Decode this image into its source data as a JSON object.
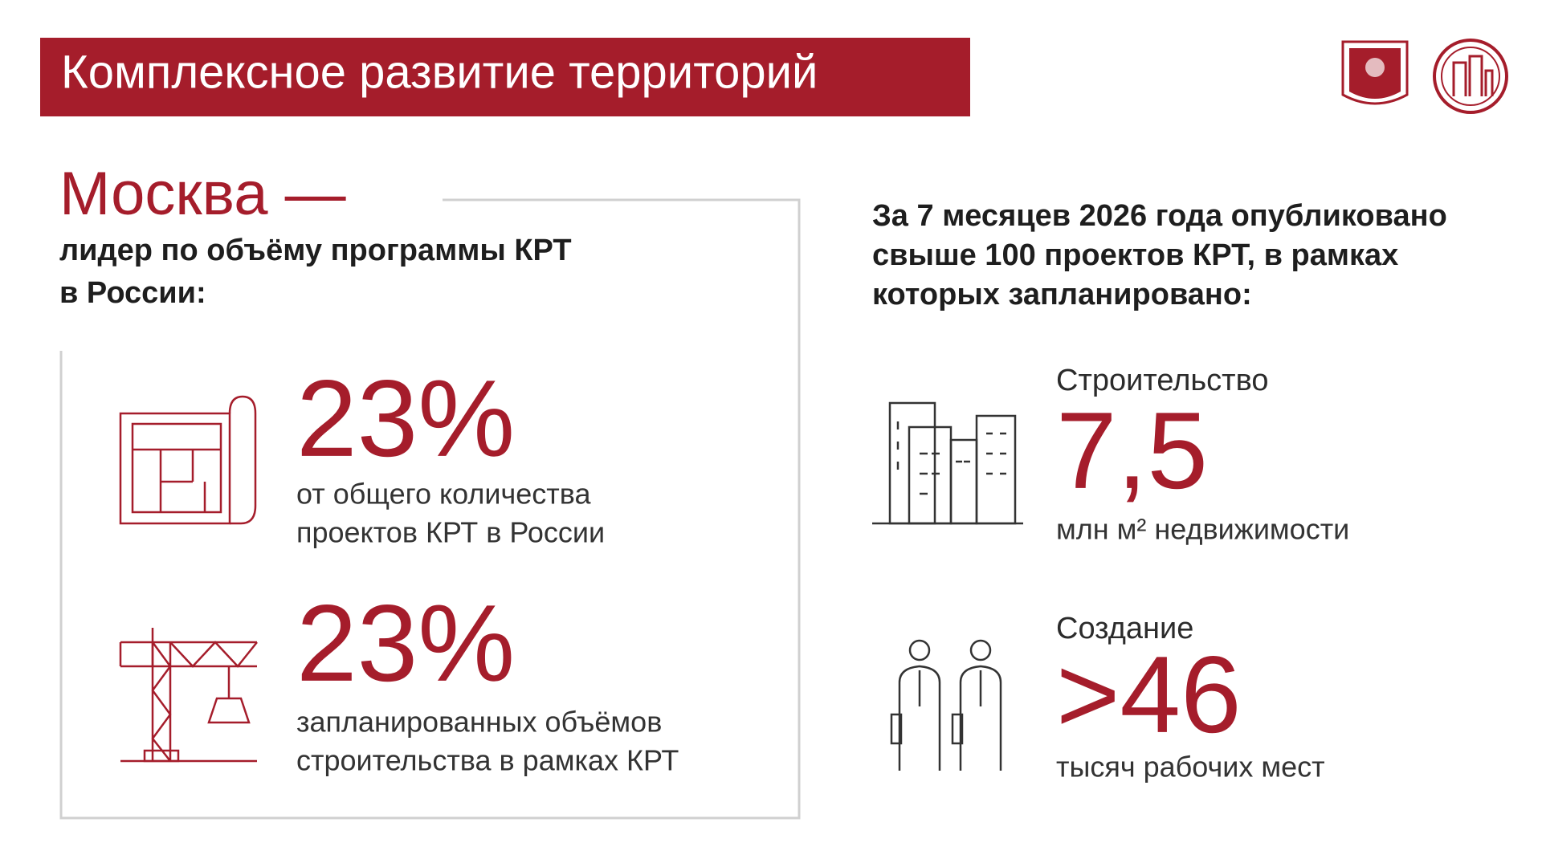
{
  "header": {
    "title": "Комплексное развитие территорий"
  },
  "left": {
    "title": "Москва —",
    "subtitle": [
      "лидер по объёму программы КРТ",
      "в России:"
    ],
    "stats": [
      {
        "value": "23%",
        "description": [
          "от общего количества",
          "проектов КРТ в России"
        ]
      },
      {
        "value": "23%",
        "description": [
          "запланированных объёмов",
          "строительства в рамках КРТ"
        ]
      }
    ]
  },
  "right": {
    "intro": [
      "За 7 месяцев 2026 года опубликовано",
      "свыше 100 проектов КРТ, в рамках",
      "которых запланировано:"
    ],
    "items": [
      {
        "label": "Строительство",
        "value": "7,5",
        "description": "млн м² недвижимости"
      },
      {
        "label": "Создание",
        "value": ">46",
        "description": "тысяч рабочих мест"
      }
    ]
  }
}
